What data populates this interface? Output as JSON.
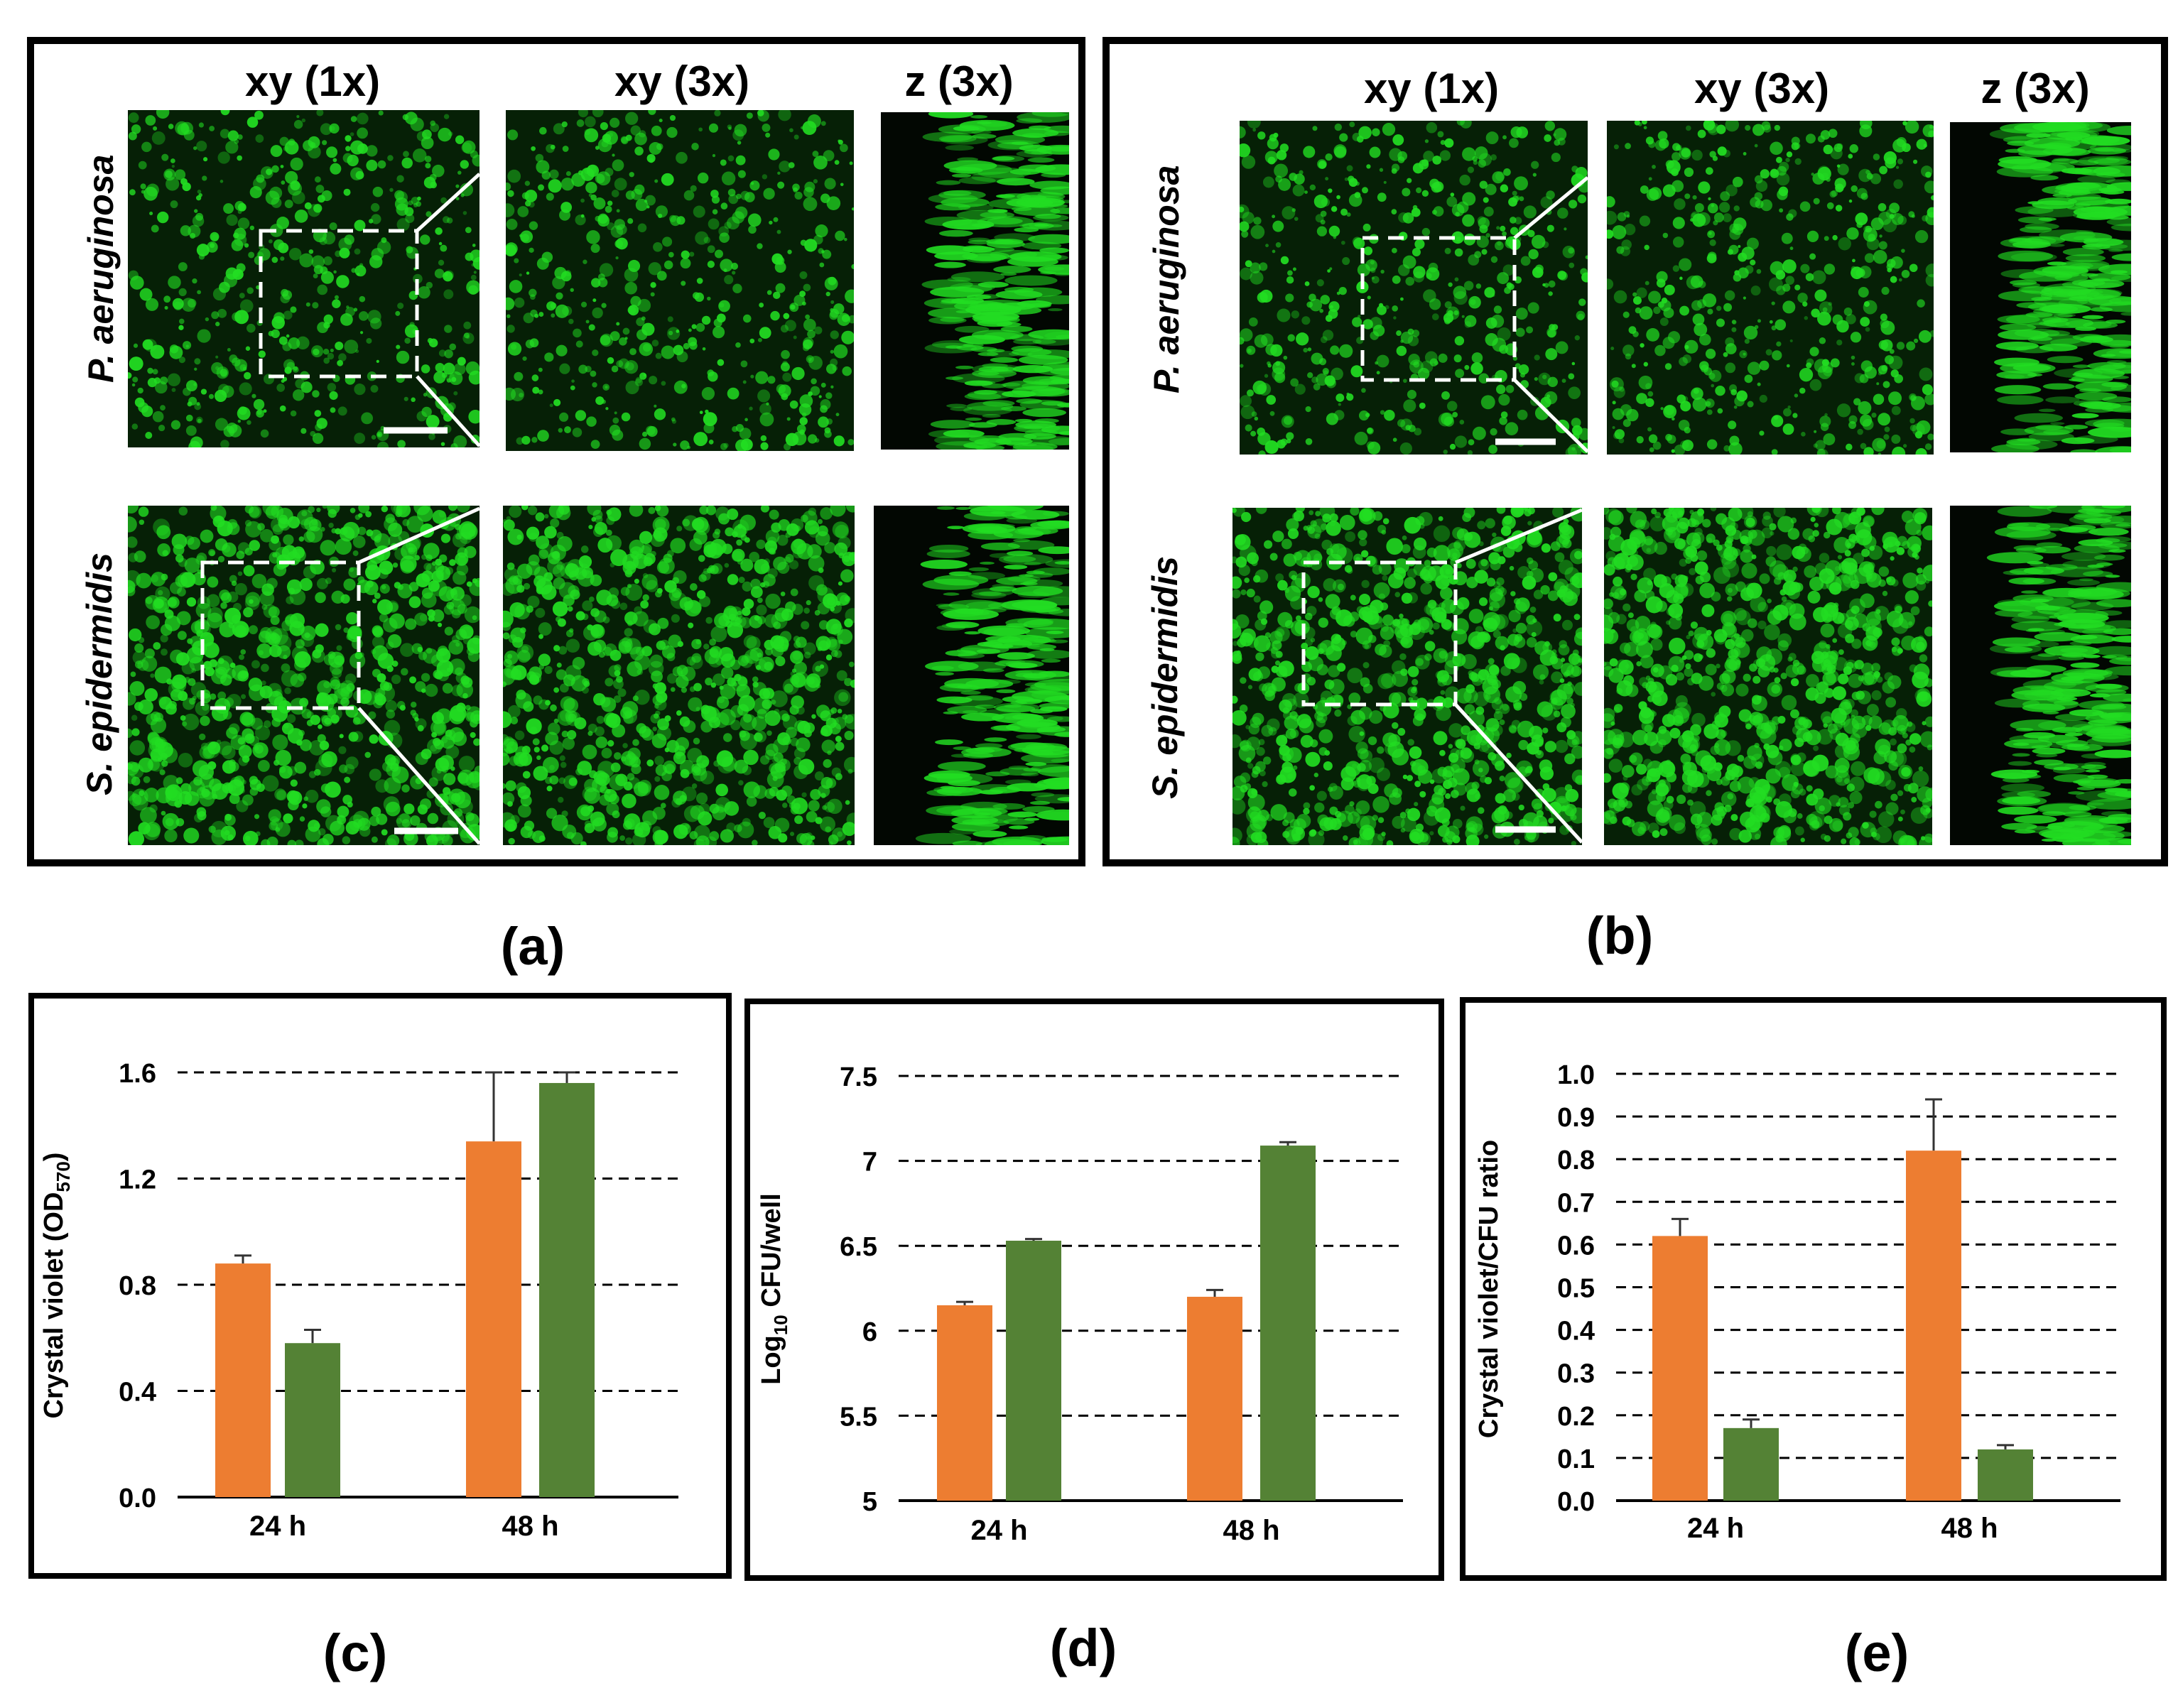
{
  "micrographs": [
    {
      "panel_label": "(a)",
      "column_headers": [
        "xy (1x)",
        "xy (3x)",
        "z (3x)"
      ],
      "rows": [
        {
          "organism": "P. aeruginosa"
        },
        {
          "organism": "S. epidermidis"
        }
      ]
    },
    {
      "panel_label": "(b)",
      "column_headers": [
        "xy (1x)",
        "xy (3x)",
        "z (3x)"
      ],
      "rows": [
        {
          "organism": "P. aeruginosa"
        },
        {
          "organism": "S. epidermidis"
        }
      ]
    }
  ],
  "colors": {
    "series_orange": "#ED7D31",
    "series_green": "#548235",
    "micro_green": "#22dd22",
    "micro_dark": "#062006"
  },
  "chart_data": [
    {
      "type": "bar",
      "panel_label": "(c)",
      "categories": [
        "24 h",
        "48 h"
      ],
      "series": [
        {
          "name": "orange",
          "values": [
            0.88,
            1.34
          ],
          "errors": [
            0.03,
            0.26
          ]
        },
        {
          "name": "green",
          "values": [
            0.58,
            1.56
          ],
          "errors": [
            0.05,
            0.04
          ]
        }
      ],
      "ylabel_main": "Crystal violet (OD",
      "ylabel_sub": "570",
      "ylabel_end": ")",
      "ylim": [
        0,
        1.6
      ],
      "yticks": [
        "0.0",
        "0.4",
        "0.8",
        "1.2",
        "1.6"
      ],
      "ytick_values": [
        0,
        0.4,
        0.8,
        1.2,
        1.6
      ],
      "grid": "dashed"
    },
    {
      "type": "bar",
      "panel_label": "(d)",
      "categories": [
        "24 h",
        "48 h"
      ],
      "series": [
        {
          "name": "orange",
          "values": [
            6.15,
            6.2
          ],
          "errors": [
            0.02,
            0.04
          ]
        },
        {
          "name": "green",
          "values": [
            6.53,
            7.09
          ],
          "errors": [
            0.01,
            0.02
          ]
        }
      ],
      "ylabel_main": "Log",
      "ylabel_sub": "10",
      "ylabel_end": " CFU/well",
      "ylim": [
        5,
        7.5
      ],
      "yticks": [
        "5",
        "5.5",
        "6",
        "6.5",
        "7",
        "7.5"
      ],
      "ytick_values": [
        5,
        5.5,
        6,
        6.5,
        7,
        7.5
      ],
      "grid": "dashed"
    },
    {
      "type": "bar",
      "panel_label": "(e)",
      "categories": [
        "24 h",
        "48 h"
      ],
      "series": [
        {
          "name": "orange",
          "values": [
            0.62,
            0.82
          ],
          "errors": [
            0.04,
            0.12
          ]
        },
        {
          "name": "green",
          "values": [
            0.17,
            0.12
          ],
          "errors": [
            0.02,
            0.01
          ]
        }
      ],
      "ylabel_main": "Crystal violet/CFU ratio",
      "ylabel_sub": "",
      "ylabel_end": "",
      "ylim": [
        0,
        1.0
      ],
      "yticks": [
        "0.0",
        "0.1",
        "0.2",
        "0.3",
        "0.4",
        "0.5",
        "0.6",
        "0.7",
        "0.8",
        "0.9",
        "1.0"
      ],
      "ytick_values": [
        0,
        0.1,
        0.2,
        0.3,
        0.4,
        0.5,
        0.6,
        0.7,
        0.8,
        0.9,
        1.0
      ],
      "grid": "dashed"
    }
  ]
}
